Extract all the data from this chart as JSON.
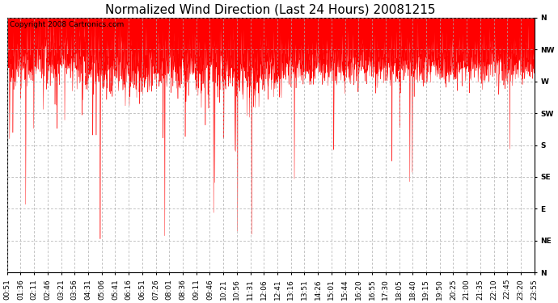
{
  "title": "Normalized Wind Direction (Last 24 Hours) 20081215",
  "copyright_text": "Copyright 2008 Cartronics.com",
  "line_color": "#ff0000",
  "background_color": "#ffffff",
  "grid_color": "#aaaaaa",
  "ytick_labels": [
    "N",
    "NW",
    "W",
    "SW",
    "S",
    "SE",
    "E",
    "NE",
    "N"
  ],
  "ytick_values": [
    1.0,
    0.875,
    0.75,
    0.625,
    0.5,
    0.375,
    0.25,
    0.125,
    0.0
  ],
  "xtick_labels": [
    "00:51",
    "01:36",
    "02:11",
    "02:46",
    "03:21",
    "03:56",
    "04:31",
    "05:06",
    "05:41",
    "06:16",
    "06:51",
    "07:26",
    "08:01",
    "08:36",
    "09:11",
    "09:46",
    "10:21",
    "10:56",
    "11:31",
    "12:06",
    "12:41",
    "13:16",
    "13:51",
    "14:26",
    "15:01",
    "15:44",
    "16:20",
    "16:55",
    "17:30",
    "18:05",
    "18:40",
    "19:15",
    "19:50",
    "20:25",
    "21:00",
    "21:35",
    "22:10",
    "22:45",
    "23:20",
    "23:55"
  ],
  "ylim": [
    0.0,
    1.0
  ],
  "seed": 42,
  "n_points": 2880,
  "title_fontsize": 11,
  "tick_fontsize": 6.5,
  "copyright_fontsize": 6.5
}
